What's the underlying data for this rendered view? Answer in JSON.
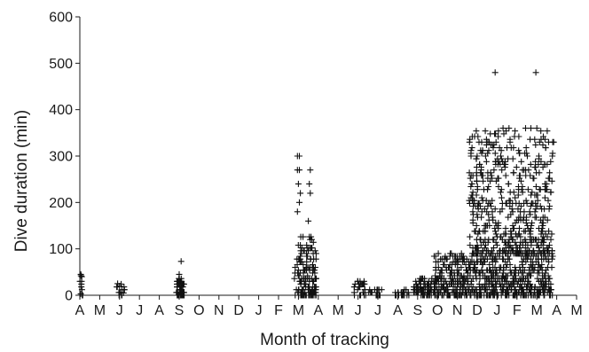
{
  "chart_data": {
    "type": "scatter",
    "marker": "plus",
    "xlabel": "Month of tracking",
    "ylabel": "Dive duration (min)",
    "ylim": [
      0,
      600
    ],
    "yticks": [
      0,
      100,
      200,
      300,
      400,
      500,
      600
    ],
    "month_ticks": [
      "A",
      "M",
      "J",
      "J",
      "A",
      "S",
      "O",
      "N",
      "D",
      "J",
      "F",
      "M",
      "A",
      "M",
      "J",
      "J",
      "A",
      "S",
      "O",
      "N",
      "D",
      "J",
      "F",
      "M",
      "A",
      "M"
    ],
    "xlim": [
      0,
      25
    ],
    "grid": false,
    "legend": "none",
    "clusters": [
      {
        "x": [
          0,
          0.15
        ],
        "y": [
          0,
          45
        ],
        "n": 10,
        "fixed": [
          [
            0.05,
            45
          ],
          [
            0.1,
            40
          ],
          [
            0.05,
            3
          ],
          [
            0.12,
            0
          ]
        ]
      },
      {
        "x": [
          1.85,
          2.25
        ],
        "y": [
          0,
          25
        ],
        "n": 14,
        "fixed": [
          [
            1.9,
            25
          ],
          [
            2.0,
            20
          ],
          [
            2.2,
            5
          ]
        ]
      },
      {
        "x": [
          4.85,
          5.25
        ],
        "y": [
          0,
          38
        ],
        "n": 70,
        "fixed": [
          [
            5.1,
            73
          ],
          [
            5.0,
            45
          ]
        ]
      },
      {
        "x": [
          10.8,
          11.9
        ],
        "y": [
          0,
          130
        ],
        "n": 160,
        "fixed": [
          [
            10.95,
            300
          ],
          [
            11.05,
            300
          ],
          [
            10.95,
            270
          ],
          [
            11.05,
            270
          ],
          [
            11.0,
            240
          ],
          [
            11.1,
            220
          ],
          [
            11.05,
            200
          ],
          [
            10.95,
            180
          ],
          [
            11.6,
            270
          ],
          [
            11.55,
            240
          ],
          [
            11.6,
            220
          ],
          [
            11.5,
            160
          ]
        ]
      },
      {
        "x": [
          13.8,
          14.4
        ],
        "y": [
          0,
          35
        ],
        "n": 28,
        "fixed": []
      },
      {
        "x": [
          14.5,
          15.2
        ],
        "y": [
          0,
          12
        ],
        "n": 18,
        "fixed": []
      },
      {
        "x": [
          15.8,
          16.6
        ],
        "y": [
          0,
          10
        ],
        "n": 24,
        "fixed": []
      },
      {
        "x": [
          16.8,
          18.0
        ],
        "y": [
          0,
          35
        ],
        "n": 90,
        "fixed": []
      },
      {
        "x": [
          17.8,
          23.8
        ],
        "y": [
          0,
          90
        ],
        "n": 700,
        "fixed": []
      },
      {
        "x": [
          19.6,
          23.8
        ],
        "y": [
          90,
          360
        ],
        "n": 520,
        "fixed": [
          [
            20.9,
            480
          ],
          [
            22.95,
            480
          ],
          [
            21.3,
            360
          ],
          [
            21.6,
            360
          ],
          [
            22.7,
            360
          ],
          [
            23.0,
            360
          ],
          [
            23.8,
            330
          ],
          [
            23.85,
            330
          ]
        ]
      }
    ]
  }
}
